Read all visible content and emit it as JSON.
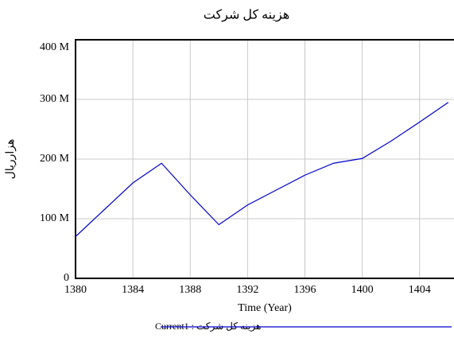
{
  "chart_data": {
    "type": "line",
    "title": "هزینه کل شرکت",
    "x_label": "Time (Year)",
    "y_label": "هزارریال",
    "x": [
      1380,
      1382,
      1384,
      1386,
      1388,
      1390,
      1392,
      1394,
      1396,
      1398,
      1400,
      1402,
      1404,
      1406
    ],
    "series": [
      {
        "name": "هزینه کل شرکت : Current1",
        "color": "#0000cc",
        "values": [
          70000000,
          115000000,
          160000000,
          193000000,
          140000000,
          90000000,
          123000000,
          148000000,
          173000000,
          193000000,
          201000000,
          230000000,
          262000000,
          295000000
        ]
      }
    ],
    "xlim": [
      1380,
      1406.4
    ],
    "xticks": [
      1380,
      1384,
      1388,
      1392,
      1396,
      1400,
      1404
    ],
    "ylim": [
      0,
      400000000
    ],
    "yticks": [
      {
        "value": 0,
        "label": "0"
      },
      {
        "value": 100000000,
        "label": "100 M"
      },
      {
        "value": 200000000,
        "label": "200 M"
      },
      {
        "value": 300000000,
        "label": "300 M"
      },
      {
        "value": 400000000,
        "label": "400 M"
      }
    ],
    "grid": true
  }
}
